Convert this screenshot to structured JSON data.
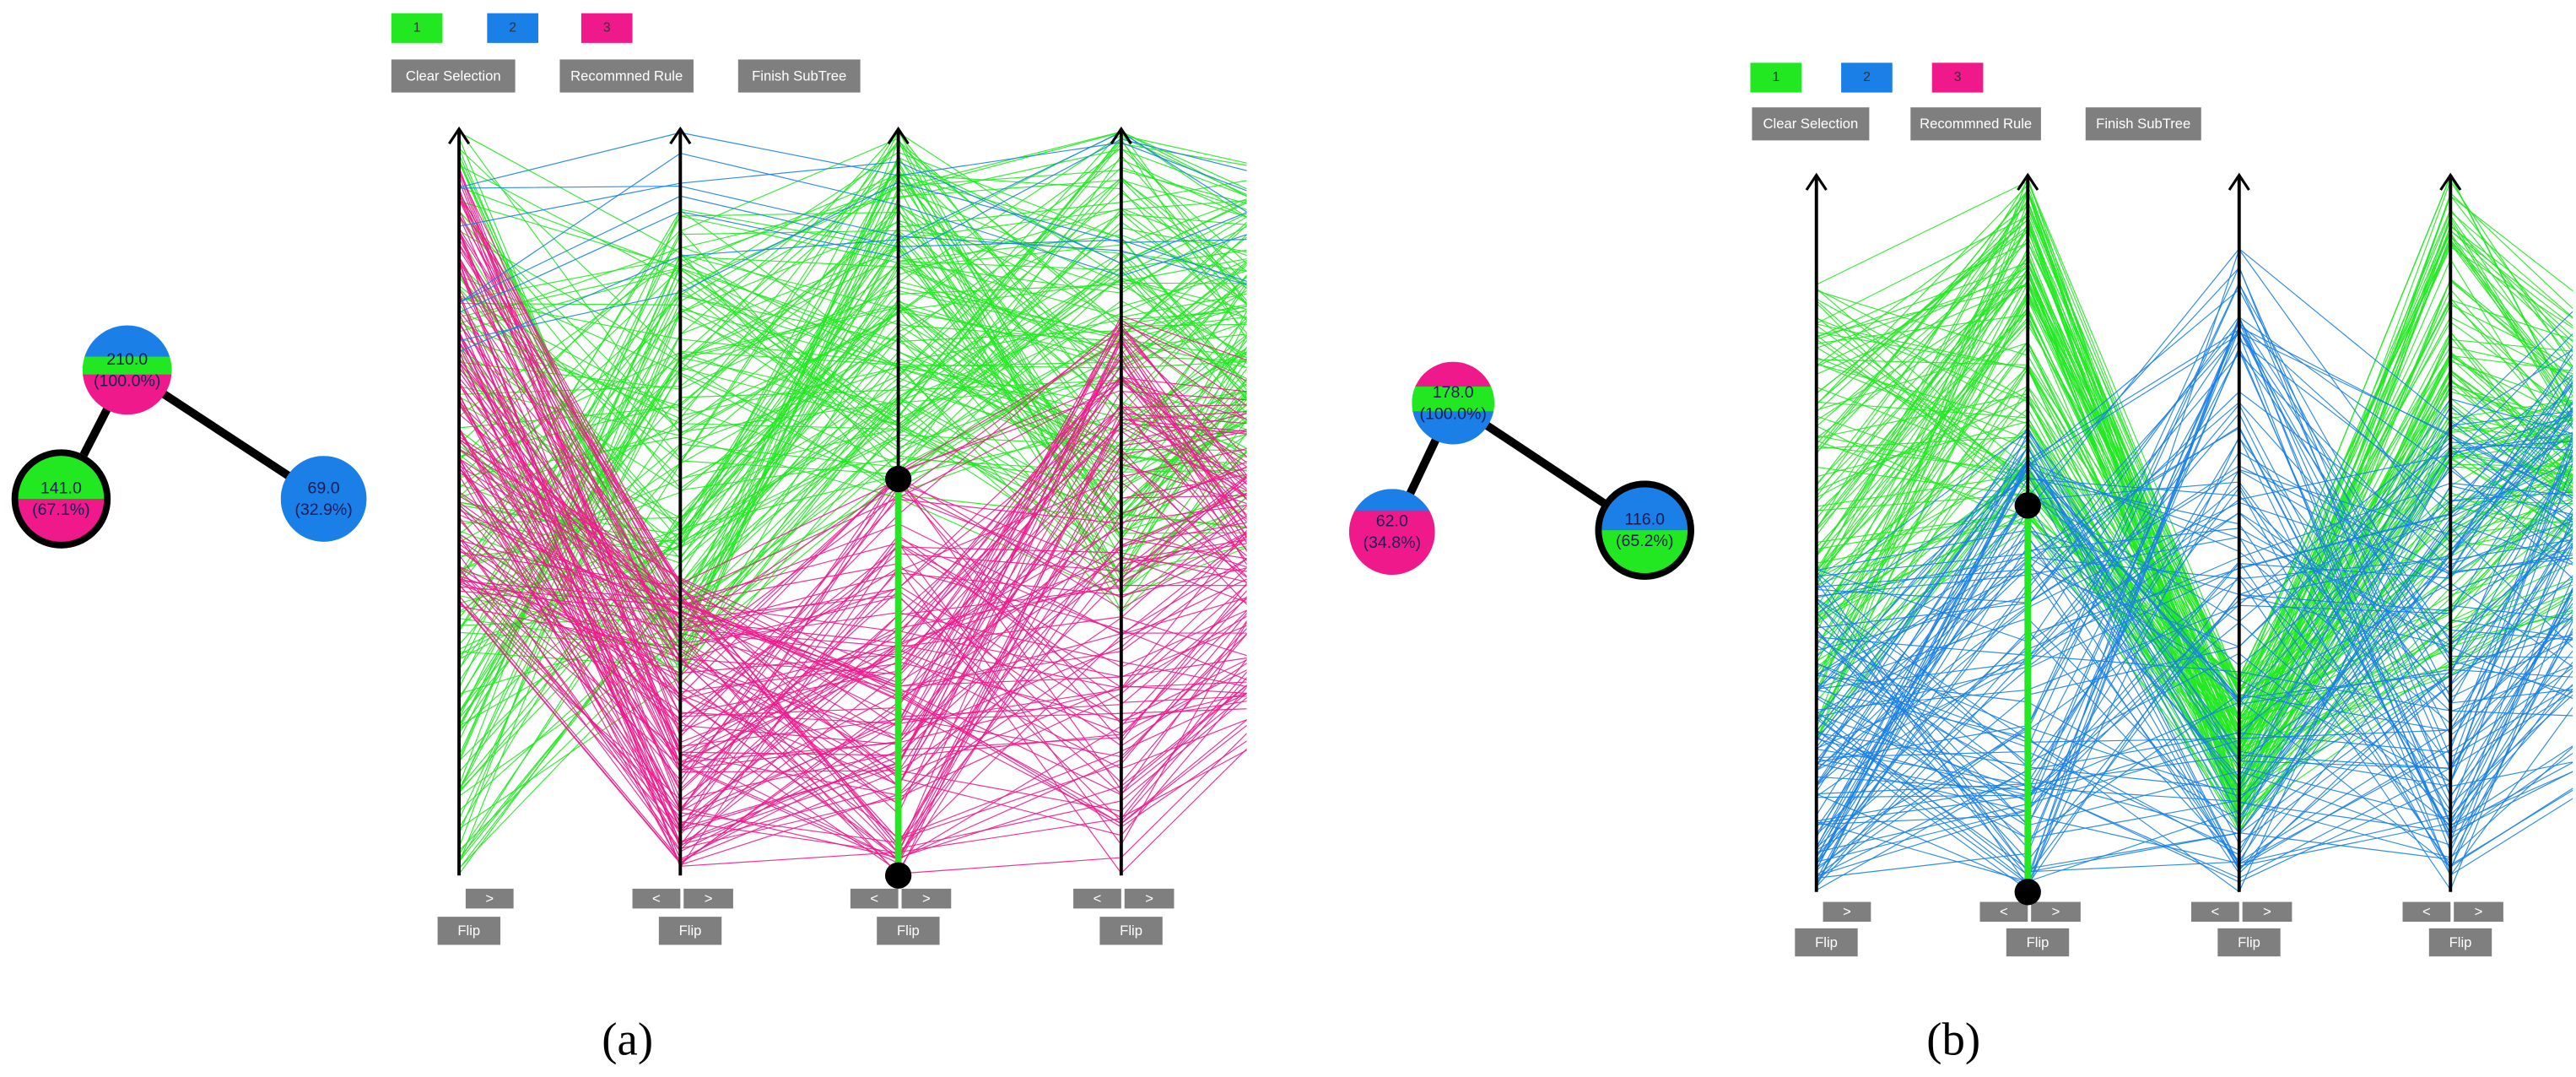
{
  "panels": [
    {
      "legend": [
        "1",
        "2",
        "3"
      ],
      "buttons": [
        "Clear Selection",
        "Recommned Rule",
        "Finish SubTree"
      ],
      "axis_controls": [
        {
          "arrows": [
            ">"
          ],
          "flip": "Flip"
        },
        {
          "arrows": [
            "<",
            ">"
          ],
          "flip": "Flip"
        },
        {
          "arrows": [
            "<",
            ">"
          ],
          "flip": "Flip"
        },
        {
          "arrows": [
            "<",
            ">"
          ],
          "flip": "Flip"
        }
      ],
      "tree": {
        "nodes": [
          {
            "count": "210.0",
            "percent": "(100.0%)"
          },
          {
            "count": "141.0",
            "percent": "(67.1%)"
          },
          {
            "count": "69.0",
            "percent": "(32.9%)"
          }
        ]
      },
      "caption": "(a)"
    },
    {
      "legend": [
        "1",
        "2",
        "3"
      ],
      "buttons": [
        "Clear Selection",
        "Recommned Rule",
        "Finish SubTree"
      ],
      "axis_controls": [
        {
          "arrows": [
            ">"
          ],
          "flip": "Flip"
        },
        {
          "arrows": [
            "<",
            ">"
          ],
          "flip": "Flip"
        },
        {
          "arrows": [
            "<",
            ">"
          ],
          "flip": "Flip"
        },
        {
          "arrows": [
            "<",
            ">"
          ],
          "flip": "Flip"
        }
      ],
      "tree": {
        "nodes": [
          {
            "count": "178.0",
            "percent": "(100.0%)"
          },
          {
            "count": "62.0",
            "percent": "(34.8%)"
          },
          {
            "count": "116.0",
            "percent": "(65.2%)"
          }
        ]
      },
      "caption": "(b)"
    }
  ]
}
